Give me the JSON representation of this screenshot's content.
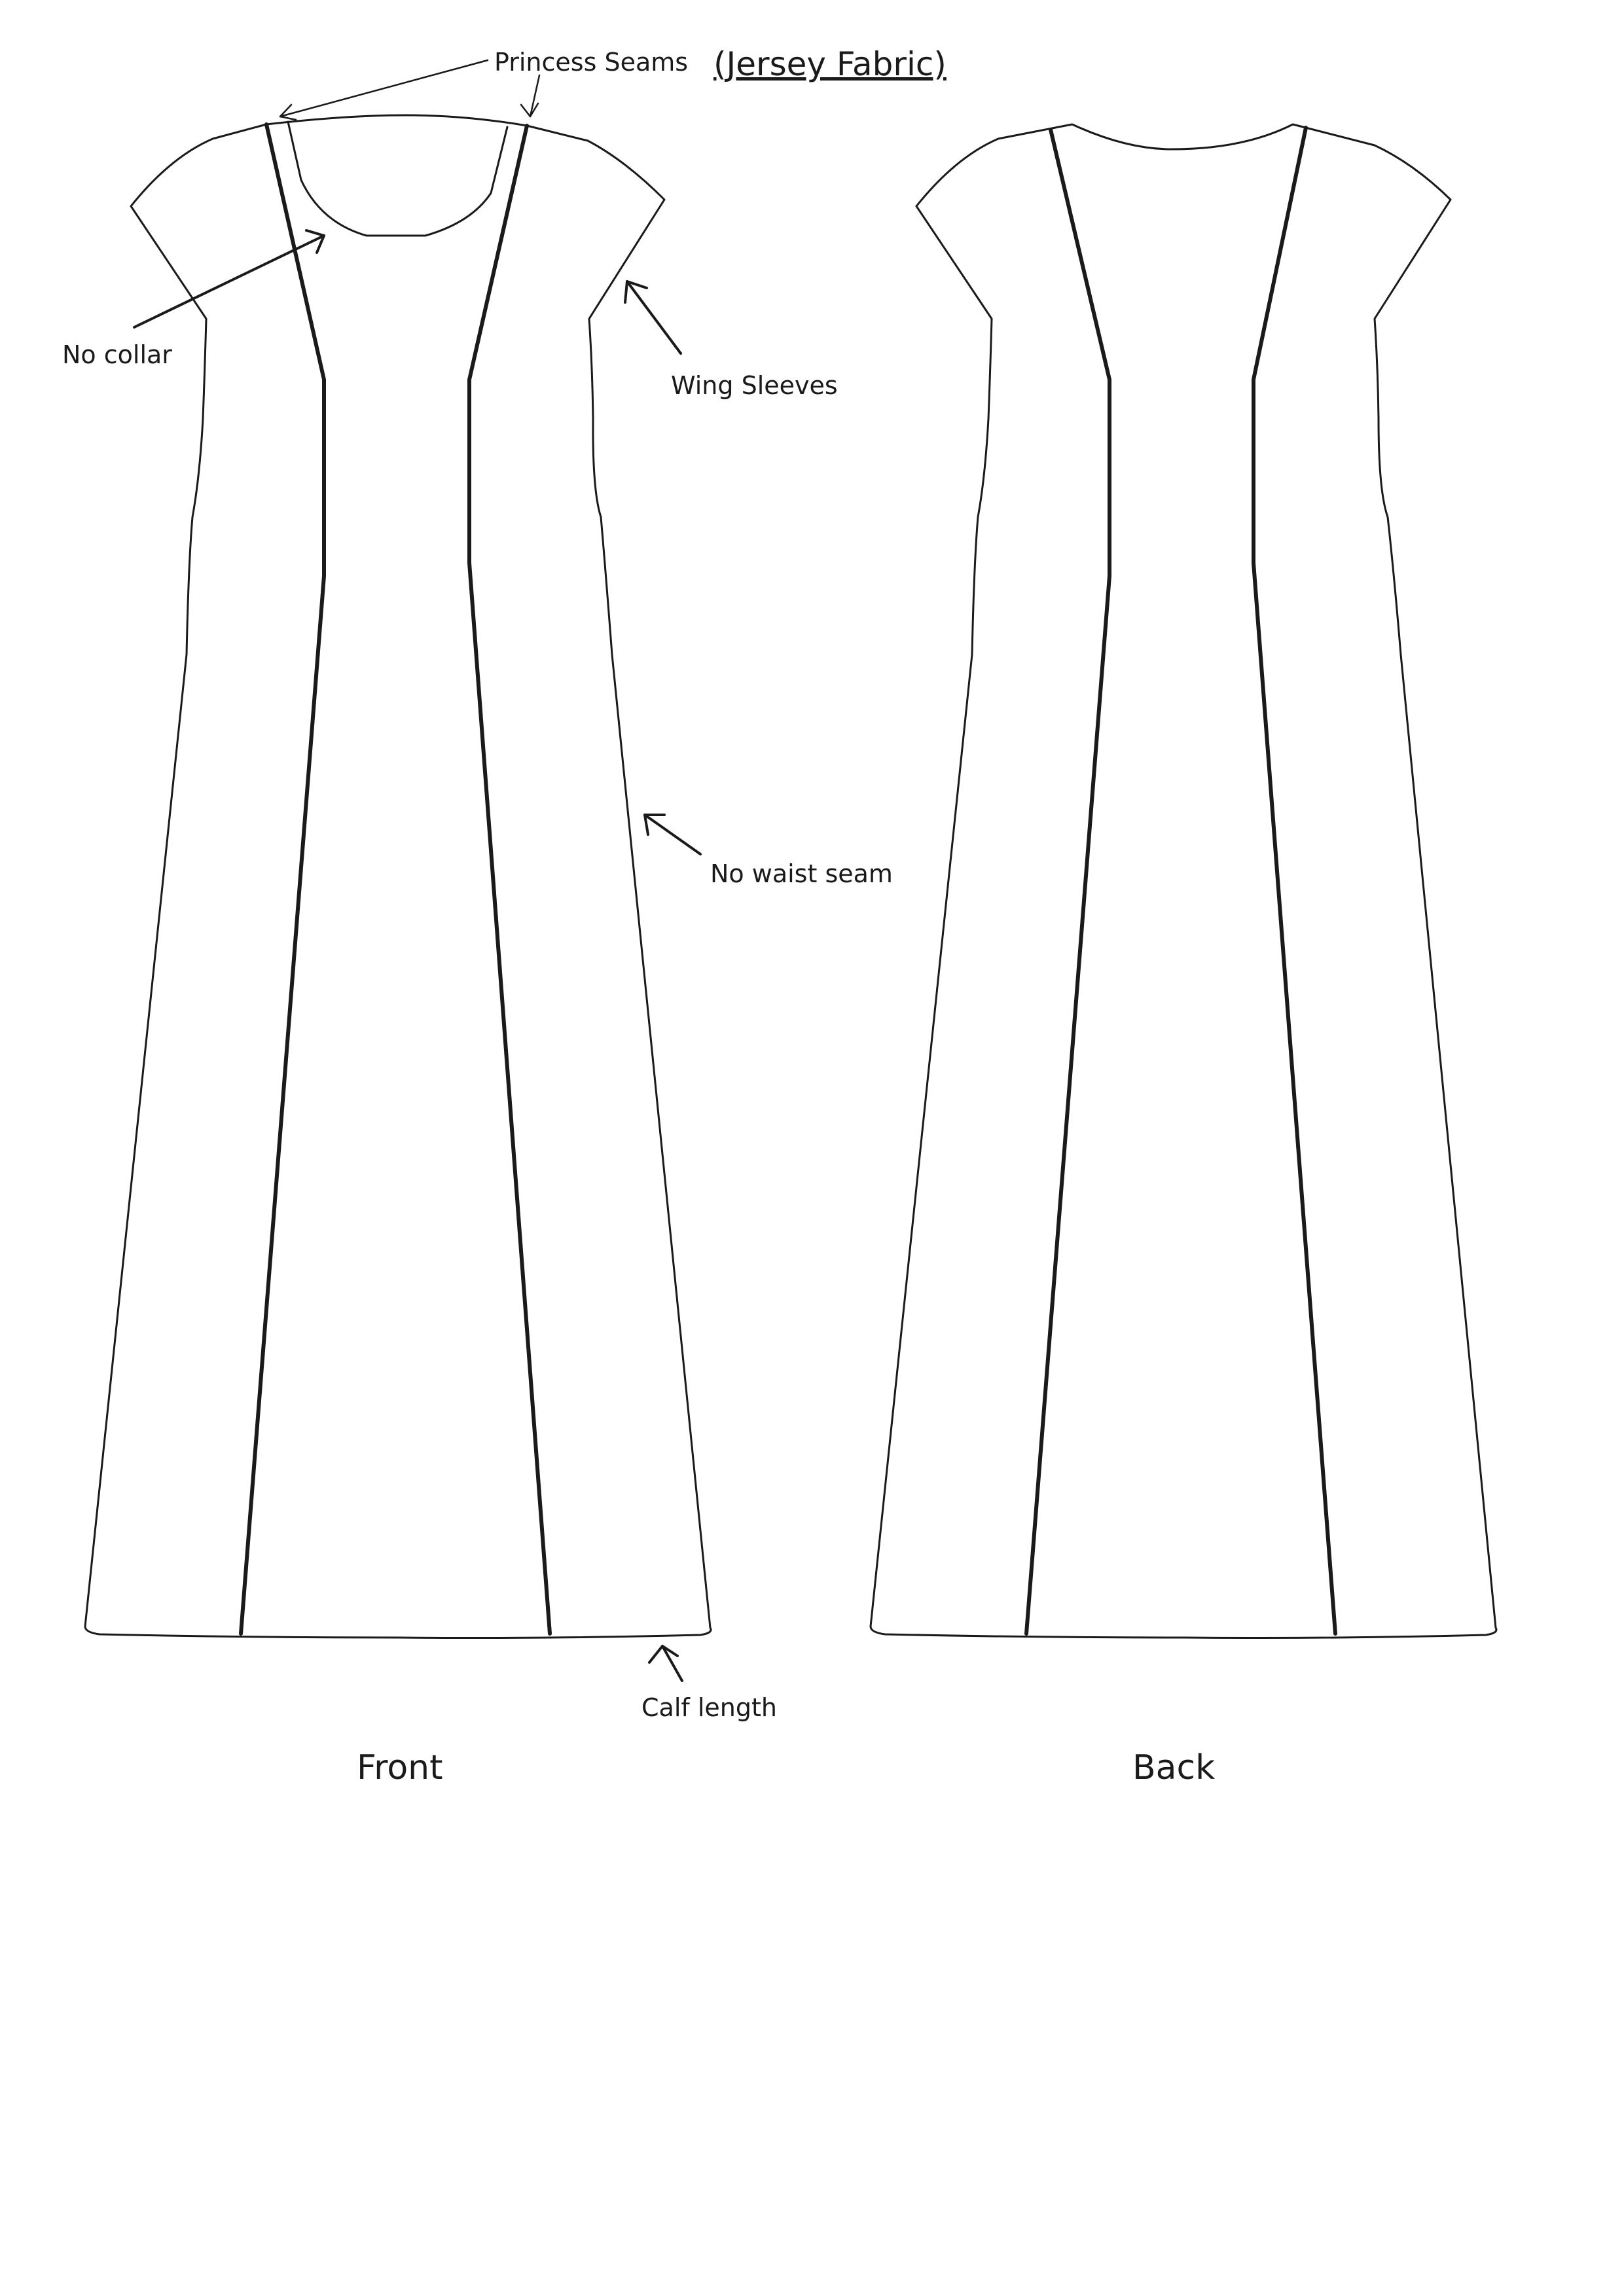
{
  "title": "(Jersey Fabric)",
  "annotations": {
    "princess_seams": "Princess Seams",
    "no_collar": "No collar",
    "wing_sleeves": "Wing Sleeves",
    "no_waist_seam": "No waist seam",
    "calf_length": "Calf length"
  },
  "views": {
    "front": "Front",
    "back": "Back"
  },
  "colors": {
    "line": "#1a1a1a",
    "background": "#ffffff"
  }
}
